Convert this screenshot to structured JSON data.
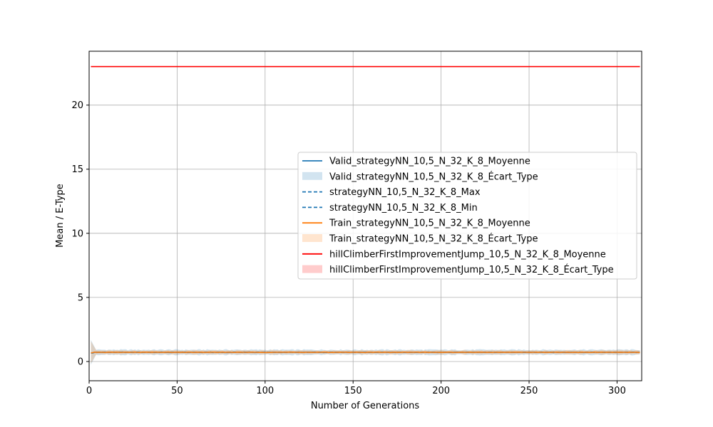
{
  "chart_data": {
    "type": "line",
    "title": "",
    "xlabel": "Number of Generations",
    "ylabel": "Mean / E-Type",
    "xlim": [
      0,
      314
    ],
    "ylim": [
      -1.5,
      24.2
    ],
    "xticks": [
      0,
      50,
      100,
      150,
      200,
      250,
      300
    ],
    "yticks": [
      0,
      5,
      10,
      15,
      20
    ],
    "grid": true,
    "legend_position": "center-right",
    "series": [
      {
        "name": "Valid_strategyNN_10,5_N_32_K_8_Moyenne",
        "kind": "line",
        "color": "#1f77b4",
        "dash": "solid",
        "mean": 0.72
      },
      {
        "name": "Valid_strategyNN_10,5_N_32_K_8_Écart_Type",
        "kind": "band",
        "color": "#1f77b4",
        "opacity": 0.2,
        "mean": 0.72,
        "std": 0.2
      },
      {
        "name": "strategyNN_10,5_N_32_K_8_Max",
        "kind": "line",
        "color": "#1f77b4",
        "dash": "dashed",
        "mean": 0.72
      },
      {
        "name": "strategyNN_10,5_N_32_K_8_Min",
        "kind": "line",
        "color": "#1f77b4",
        "dash": "dashed",
        "mean": 0.72
      },
      {
        "name": "Train_strategyNN_10,5_N_32_K_8_Moyenne",
        "kind": "line",
        "color": "#ff7f0e",
        "dash": "solid",
        "mean": 0.72
      },
      {
        "name": "Train_strategyNN_10,5_N_32_K_8_Écart_Type",
        "kind": "band",
        "color": "#ff7f0e",
        "opacity": 0.2,
        "mean": 0.72,
        "std": 0.15
      },
      {
        "name": "hillClimberFirstImprovementJump_10,5_N_32_K_8_Moyenne",
        "kind": "line",
        "color": "#ff0000",
        "dash": "solid",
        "mean": 23.0
      },
      {
        "name": "hillClimberFirstImprovementJump_10,5_N_32_K_8_Écart_Type",
        "kind": "band",
        "color": "#ff0000",
        "opacity": 0.2,
        "mean": 23.0,
        "std": 0.0
      }
    ]
  }
}
